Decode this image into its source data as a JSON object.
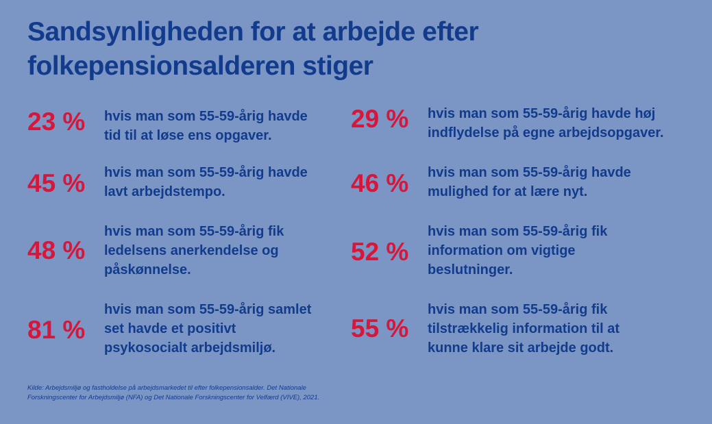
{
  "title": {
    "lines": [
      "Sandsynligheden for at arbejde efter",
      "folkepensionsalderen stiger"
    ]
  },
  "stats": [
    {
      "value": "23 %",
      "lines": [
        "hvis man som 55-59-årig havde",
        "tid til at løse ens opgaver."
      ]
    },
    {
      "value": "29 %",
      "lines": [
        "hvis man som 55-59-årig havde høj",
        "indflydelse på egne arbejdsopgaver."
      ]
    },
    {
      "value": "45 %",
      "lines": [
        "hvis man som 55-59-årig havde",
        "lavt arbejdstempo."
      ]
    },
    {
      "value": "46 %",
      "lines": [
        "hvis man som 55-59-årig havde",
        "mulighed for at lære nyt."
      ]
    },
    {
      "value": "48 %",
      "lines": [
        "hvis man som 55-59-årig fik",
        "ledelsens anerkendelse og",
        "påskønnelse."
      ]
    },
    {
      "value": "52 %",
      "lines": [
        "hvis man som 55-59-årig fik",
        "information om vigtige",
        "beslutninger."
      ]
    },
    {
      "value": "81 %",
      "lines": [
        "hvis man som 55-59-årig samlet",
        "set havde et positivt",
        "psykosocialt arbejdsmiljø."
      ]
    },
    {
      "value": "55 %",
      "lines": [
        "hvis man som 55-59-årig fik",
        "tilstrækkelig information til at",
        "kunne klare sit arbejde godt."
      ]
    }
  ],
  "source": {
    "lines": [
      "Kilde: Arbejdsmiljø og fastholdelse på arbejdsmarkedet til efter folkepensionsalder. Det Nationale",
      "Forskningscenter for Arbejdsmiljø (NFA) og Det Nationale Forskningscenter for Velfærd (VIVE), 2021."
    ]
  },
  "colors": {
    "background": "#7b95c5",
    "heading": "#123b8c",
    "accent": "#d4173a"
  }
}
